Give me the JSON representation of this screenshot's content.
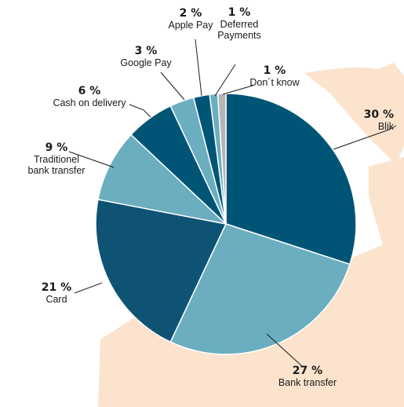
{
  "chart_data": {
    "type": "pie",
    "title": "",
    "slices": [
      {
        "label": [
          "Blik"
        ],
        "value": 30,
        "pct_label": "30 %",
        "color": "#005576"
      },
      {
        "label": [
          "Bank transfer"
        ],
        "value": 27,
        "pct_label": "27 %",
        "color": "#6aaebf"
      },
      {
        "label": [
          "Card"
        ],
        "value": 21,
        "pct_label": "21 %",
        "color": "#0e5373"
      },
      {
        "label": [
          "Traditionel",
          "bank transfer"
        ],
        "value": 9,
        "pct_label": "9 %",
        "color": "#6aaebf"
      },
      {
        "label": [
          "Cash on delivery"
        ],
        "value": 6,
        "pct_label": "6 %",
        "color": "#005576"
      },
      {
        "label": [
          "Google Pay"
        ],
        "value": 3,
        "pct_label": "3 %",
        "color": "#6aaebf"
      },
      {
        "label": [
          "Apple Pay"
        ],
        "value": 2,
        "pct_label": "2 %",
        "color": "#005576"
      },
      {
        "label": [
          "Deferred",
          "Payments"
        ],
        "value": 1,
        "pct_label": "1 %",
        "color": "#6aaebf"
      },
      {
        "label": [
          "Don´t know"
        ],
        "value": 1,
        "pct_label": "1 %",
        "color": "#b5b5b5"
      }
    ],
    "start_angle_deg": 0,
    "direction": "clockwise",
    "background_color": "#fbe3cd"
  }
}
